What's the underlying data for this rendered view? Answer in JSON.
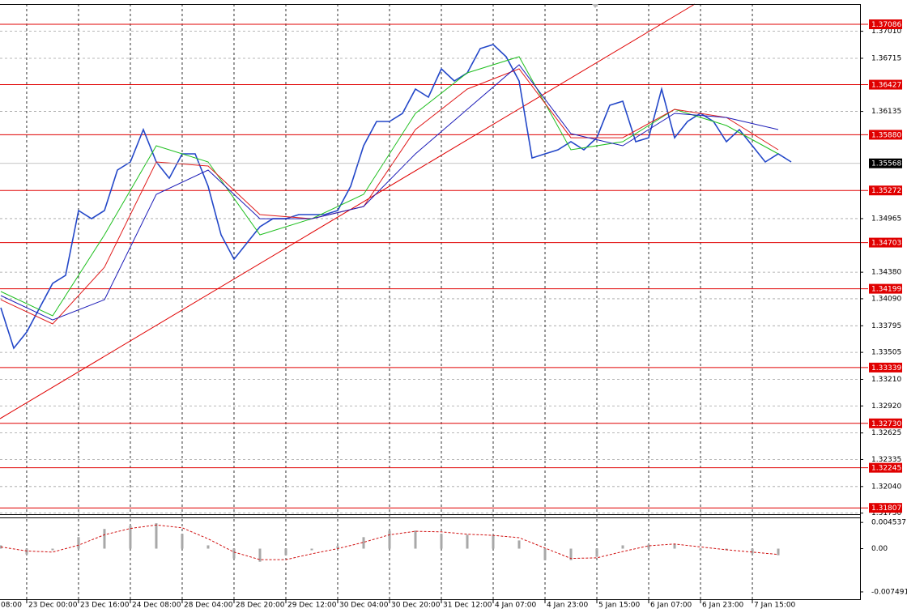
{
  "chart_data": [
    {
      "type": "line",
      "xlim": [
        -0.06,
        66.31
      ],
      "ylim": [
        1.31738,
        1.37307
      ],
      "x": [
        0,
        1,
        2,
        3,
        4,
        5,
        6,
        7,
        8,
        9,
        10,
        11,
        12,
        13,
        14,
        15,
        16,
        17,
        18,
        19,
        20,
        21,
        22,
        23,
        24,
        25,
        26,
        27,
        28,
        29,
        30,
        31,
        32,
        33,
        34,
        35,
        36,
        37,
        38,
        39,
        40,
        41,
        42,
        43,
        44,
        45,
        46,
        47,
        48,
        49,
        50,
        51,
        52,
        53,
        54,
        55,
        56,
        57,
        58,
        59,
        60,
        61
      ],
      "series": [
        {
          "color": "#2347c8",
          "values": [
            1.33992,
            1.3355,
            1.33727,
            1.33992,
            1.34257,
            1.34346,
            1.35053,
            1.34964,
            1.35053,
            1.35495,
            1.35583,
            1.35937,
            1.35583,
            1.35406,
            1.35672,
            1.35672,
            1.35318,
            1.34788,
            1.34522,
            1.34699,
            1.34876,
            1.34964,
            1.34964,
            1.35009,
            1.35009,
            1.35009,
            1.35053,
            1.35318,
            1.3576,
            1.36025,
            1.36025,
            1.36114,
            1.36379,
            1.3629,
            1.366,
            1.36467,
            1.36556,
            1.36821,
            1.36865,
            1.36732,
            1.36467,
            1.35627,
            1.35672,
            1.35716,
            1.35804,
            1.35716,
            1.35848,
            1.36202,
            1.36246,
            1.35804,
            1.35848,
            1.36379,
            1.35848,
            1.36025,
            1.36114,
            1.36025,
            1.35804,
            1.35937,
            1.3576,
            1.35583,
            1.35672,
            1.35583
          ]
        },
        {
          "color": "#1fbf1f",
          "x": [
            0,
            4,
            8,
            12,
            16,
            20,
            24,
            28,
            32,
            36,
            40,
            44,
            48,
            52,
            56,
            60
          ],
          "values": [
            1.34169,
            1.33904,
            1.34788,
            1.3576,
            1.35583,
            1.34788,
            1.34964,
            1.3523,
            1.36114,
            1.36556,
            1.36732,
            1.35716,
            1.35804,
            1.36158,
            1.35981,
            1.35672
          ]
        },
        {
          "color": "#e01b1b",
          "x": [
            0,
            4,
            8,
            12,
            16,
            20,
            24,
            28,
            32,
            36,
            40,
            44,
            48,
            52,
            56,
            60
          ],
          "values": [
            1.3408,
            1.33815,
            1.34434,
            1.35583,
            1.35539,
            1.35009,
            1.34964,
            1.35097,
            1.35937,
            1.36379,
            1.366,
            1.35848,
            1.35848,
            1.36158,
            1.36069,
            1.35716
          ]
        },
        {
          "color": "#1c1cb8",
          "x": [
            0,
            4,
            8,
            12,
            16,
            20,
            24,
            28,
            32,
            36,
            40,
            44,
            48,
            52,
            56,
            60
          ],
          "values": [
            1.34125,
            1.33859,
            1.3408,
            1.3523,
            1.35495,
            1.34964,
            1.34964,
            1.35097,
            1.35672,
            1.36158,
            1.36644,
            1.35893,
            1.3576,
            1.36114,
            1.36069,
            1.35937
          ]
        }
      ],
      "levels": [
        {
          "value": 1.37086,
          "label": "1.37086"
        },
        {
          "value": 1.36427,
          "label": "1.36427"
        },
        {
          "value": 1.3588,
          "label": "1.35880"
        },
        {
          "value": 1.35272,
          "label": "1.35272"
        },
        {
          "value": 1.34703,
          "label": "1.34703"
        },
        {
          "value": 1.34199,
          "label": "1.34199"
        },
        {
          "value": 1.33339,
          "label": "1.33339"
        },
        {
          "value": 1.3273,
          "label": "1.32730"
        },
        {
          "value": 1.32245,
          "label": "1.32245"
        },
        {
          "value": 1.31807,
          "label": "1.31807"
        }
      ],
      "level_color": "#e00000",
      "last_price": {
        "value": 1.35568,
        "label": "1.35568"
      },
      "trendline": [
        [
          -0.06,
          1.32781
        ],
        [
          53.56,
          1.37307
        ]
      ],
      "yticks": [
        {
          "value": 1.3701,
          "label": "1.37010"
        },
        {
          "value": 1.36715,
          "label": "1.36715"
        },
        {
          "value": 1.36135,
          "label": "1.36135"
        },
        {
          "value": 1.34965,
          "label": "1.34965"
        },
        {
          "value": 1.3438,
          "label": "1.34380"
        },
        {
          "value": 1.3409,
          "label": "1.34090"
        },
        {
          "value": 1.33795,
          "label": "1.33795"
        },
        {
          "value": 1.33505,
          "label": "1.33505"
        },
        {
          "value": 1.3321,
          "label": "1.33210"
        },
        {
          "value": 1.3292,
          "label": "1.32920"
        },
        {
          "value": 1.32625,
          "label": "1.32625"
        },
        {
          "value": 1.32335,
          "label": "1.32335"
        },
        {
          "value": 1.3204,
          "label": "1.32040"
        },
        {
          "value": 1.3175,
          "label": "1.31750"
        }
      ],
      "xticks": [
        {
          "value": -2,
          "label": "08:00"
        },
        {
          "value": 2,
          "label": "23 Dec 00:00"
        },
        {
          "value": 6,
          "label": "23 Dec 16:00"
        },
        {
          "value": 10,
          "label": "24 Dec 08:00"
        },
        {
          "value": 14,
          "label": "28 Dec 04:00"
        },
        {
          "value": 18,
          "label": "28 Dec 20:00"
        },
        {
          "value": 22,
          "label": "29 Dec 12:00"
        },
        {
          "value": 26,
          "label": "30 Dec 04:00"
        },
        {
          "value": 30,
          "label": "30 Dec 20:00"
        },
        {
          "value": 34,
          "label": "31 Dec 12:00"
        },
        {
          "value": 38,
          "label": "4 Jan 07:00"
        },
        {
          "value": 42,
          "label": "4 Jan 23:00"
        },
        {
          "value": 46,
          "label": "5 Jan 15:00"
        },
        {
          "value": 50,
          "label": "6 Jan 07:00"
        },
        {
          "value": 54,
          "label": "6 Jan 23:00"
        },
        {
          "value": 58,
          "label": "7 Jan 15:00"
        }
      ],
      "grid": true
    },
    {
      "type": "bar",
      "xlim": [
        -0.06,
        66.31
      ],
      "ylim": [
        -0.0089,
        0.0054
      ],
      "x": [
        0,
        2,
        4,
        6,
        8,
        10,
        12,
        14,
        16,
        18,
        20,
        22,
        24,
        26,
        28,
        30,
        32,
        34,
        36,
        38,
        40,
        42,
        44,
        46,
        48,
        50,
        52,
        54,
        56,
        58,
        60
      ],
      "series": [
        {
          "color": "#a8a8a8",
          "kind": "bar",
          "values": [
            0.00057,
            -0.00099,
            -0.00028,
            0.00199,
            0.00341,
            0.00398,
            0.0044,
            0.00256,
            0.00057,
            -0.0017,
            -0.00227,
            -0.00114,
            -0.00028,
            0.00043,
            0.00199,
            0.00312,
            0.00312,
            0.00256,
            0.00241,
            0.00227,
            0.00142,
            -0.00199,
            -0.00199,
            -0.00142,
            0.00057,
            0.00071,
            0.00085,
            -0.00028,
            -0.00028,
            -0.00085,
            -0.00114
          ]
        },
        {
          "color": "#d01010",
          "kind": "dash",
          "values": [
            0.0003,
            -0.0004,
            -0.0006,
            0.0006,
            0.0024,
            0.0035,
            0.0041,
            0.0036,
            0.0017,
            -0.0006,
            -0.0019,
            -0.0019,
            -0.0009,
            0.0,
            0.0011,
            0.0024,
            0.003,
            0.0029,
            0.0025,
            0.0023,
            0.0019,
            0.0001,
            -0.0017,
            -0.0016,
            -0.0005,
            0.0005,
            0.0008,
            0.0003,
            -0.0002,
            -0.0006,
            -0.001
          ]
        }
      ],
      "yticks": [
        {
          "value": 0.004537,
          "label": "0.004537"
        },
        {
          "value": 0,
          "label": "0.00"
        },
        {
          "value": -0.007491,
          "label": "-0.007491"
        }
      ]
    }
  ]
}
